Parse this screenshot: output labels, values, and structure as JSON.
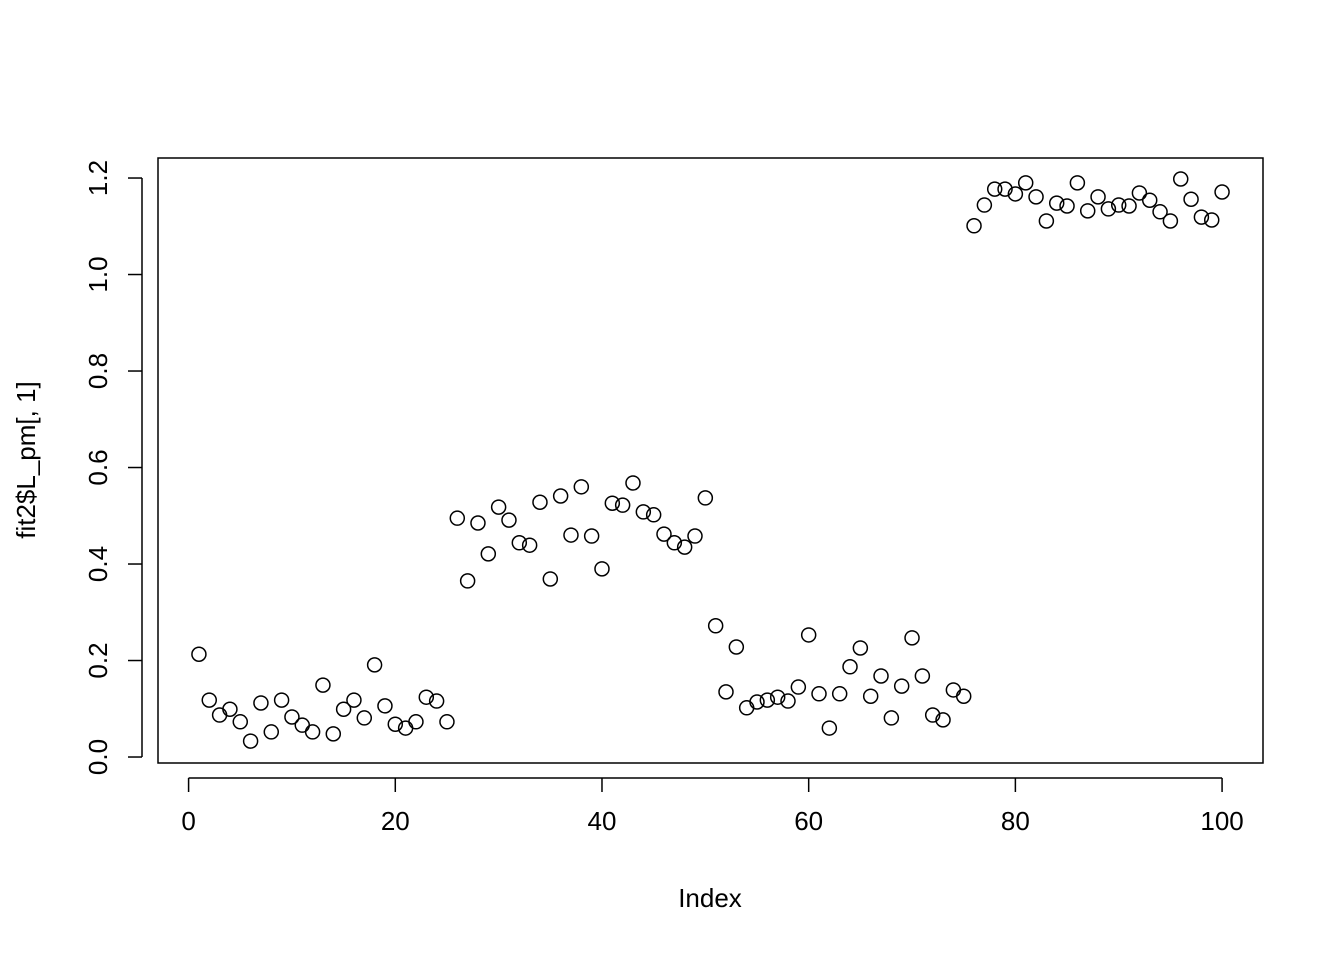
{
  "chart_data": {
    "type": "scatter",
    "x_label": "Index",
    "y_label": "fit2$L_pm[, 1]",
    "x": [
      1,
      2,
      3,
      4,
      5,
      6,
      7,
      8,
      9,
      10,
      11,
      12,
      13,
      14,
      15,
      16,
      17,
      18,
      19,
      20,
      21,
      22,
      23,
      24,
      25,
      26,
      27,
      28,
      29,
      30,
      31,
      32,
      33,
      34,
      35,
      36,
      37,
      38,
      39,
      40,
      41,
      42,
      43,
      44,
      45,
      46,
      47,
      48,
      49,
      50,
      51,
      52,
      53,
      54,
      55,
      56,
      57,
      58,
      59,
      60,
      61,
      62,
      63,
      64,
      65,
      66,
      67,
      68,
      69,
      70,
      71,
      72,
      73,
      74,
      75,
      76,
      77,
      78,
      79,
      80,
      81,
      82,
      83,
      84,
      85,
      86,
      87,
      88,
      89,
      90,
      91,
      92,
      93,
      94,
      95,
      96,
      97,
      98,
      99,
      100
    ],
    "values": [
      0.213,
      0.118,
      0.087,
      0.099,
      0.073,
      0.033,
      0.112,
      0.052,
      0.118,
      0.083,
      0.066,
      0.052,
      0.149,
      0.048,
      0.099,
      0.118,
      0.081,
      0.191,
      0.106,
      0.068,
      0.06,
      0.073,
      0.124,
      0.116,
      0.073,
      0.495,
      0.365,
      0.485,
      0.421,
      0.518,
      0.491,
      0.444,
      0.439,
      0.528,
      0.369,
      0.541,
      0.46,
      0.56,
      0.458,
      0.39,
      0.526,
      0.522,
      0.568,
      0.508,
      0.502,
      0.462,
      0.444,
      0.435,
      0.458,
      0.537,
      0.272,
      0.135,
      0.228,
      0.102,
      0.114,
      0.118,
      0.124,
      0.116,
      0.145,
      0.253,
      0.131,
      0.06,
      0.131,
      0.187,
      0.226,
      0.126,
      0.168,
      0.081,
      0.147,
      0.247,
      0.168,
      0.087,
      0.077,
      0.139,
      0.126,
      1.101,
      1.144,
      1.177,
      1.177,
      1.167,
      1.19,
      1.161,
      1.111,
      1.148,
      1.142,
      1.19,
      1.132,
      1.161,
      1.136,
      1.144,
      1.142,
      1.169,
      1.154,
      1.13,
      1.111,
      1.198,
      1.156,
      1.119,
      1.113,
      1.171
    ],
    "color": "#000000",
    "xlim": [
      -2.96,
      103.96
    ],
    "ylim": [
      -0.0124,
      1.2415
    ],
    "xticks": [
      0,
      20,
      40,
      60,
      80,
      100
    ],
    "yticks": [
      {
        "value": 0,
        "label": "0.0"
      },
      0.2,
      0.4,
      0.6,
      0.8,
      {
        "value": 1,
        "label": "1.0"
      },
      1.2
    ]
  }
}
